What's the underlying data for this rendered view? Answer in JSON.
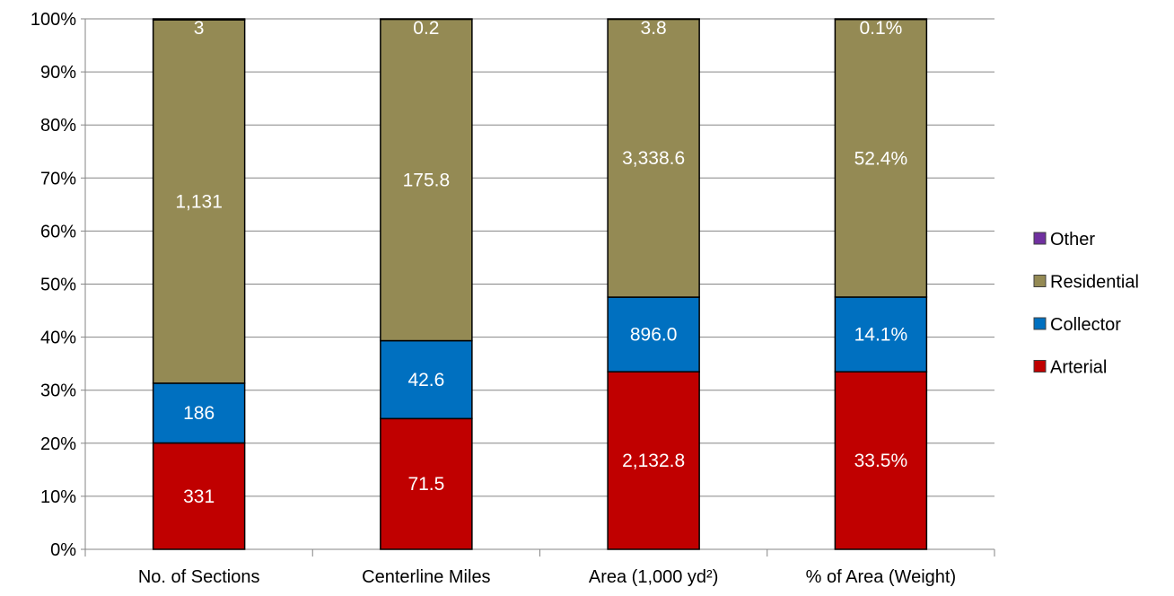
{
  "chart_data": {
    "type": "bar",
    "stacked": "percent",
    "categories": [
      "No. of Sections",
      "Centerline Miles",
      "Area (1,000 yd²)",
      "% of Area (Weight)"
    ],
    "series": [
      {
        "name": "Arterial",
        "color": "#C00000",
        "values": [
          331,
          71.5,
          2132.8,
          33.5
        ],
        "labels": [
          "331",
          "71.5",
          "2,132.8",
          "33.5%"
        ]
      },
      {
        "name": "Collector",
        "color": "#0070C0",
        "values": [
          186,
          42.6,
          896.0,
          14.1
        ],
        "labels": [
          "186",
          "42.6",
          "896.0",
          "14.1%"
        ]
      },
      {
        "name": "Residential",
        "color": "#948A54",
        "values": [
          1131,
          175.8,
          3338.6,
          52.4
        ],
        "labels": [
          "1,131",
          "175.8",
          "3,338.6",
          "52.4%"
        ]
      },
      {
        "name": "Other",
        "color": "#7030A0",
        "values": [
          3,
          0.2,
          3.8,
          0.1
        ],
        "labels": [
          "3",
          "0.2",
          "3.8",
          "0.1%"
        ]
      }
    ],
    "y_ticks": [
      "0%",
      "10%",
      "20%",
      "30%",
      "40%",
      "50%",
      "60%",
      "70%",
      "80%",
      "90%",
      "100%"
    ],
    "ylim": [
      0,
      100
    ],
    "grid": true,
    "legend": {
      "position": "right",
      "order": [
        "Other",
        "Residential",
        "Collector",
        "Arterial"
      ]
    },
    "title": "",
    "xlabel": "",
    "ylabel": ""
  }
}
